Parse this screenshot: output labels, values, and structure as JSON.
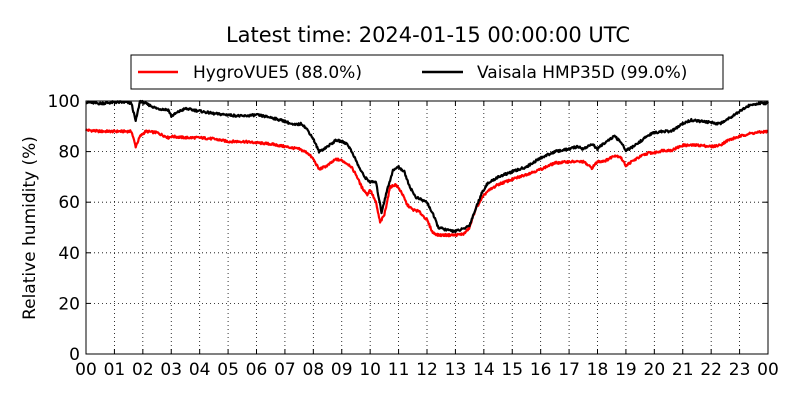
{
  "chart_data": {
    "type": "line",
    "title": "Latest time: 2024-01-15 00:00:00 UTC",
    "xlabel": "",
    "ylabel": "Relative humidity (%)",
    "xlim": [
      0,
      24
    ],
    "ylim": [
      0,
      100
    ],
    "grid": true,
    "legend_position": "top-center",
    "x_ticks": [
      0,
      1,
      2,
      3,
      4,
      5,
      6,
      7,
      8,
      9,
      10,
      11,
      12,
      13,
      14,
      15,
      16,
      17,
      18,
      19,
      20,
      21,
      22,
      23,
      24
    ],
    "x_tick_labels": [
      "00",
      "01",
      "02",
      "03",
      "04",
      "05",
      "06",
      "07",
      "08",
      "09",
      "10",
      "11",
      "12",
      "13",
      "14",
      "15",
      "16",
      "17",
      "18",
      "19",
      "20",
      "21",
      "22",
      "23",
      "00"
    ],
    "y_ticks": [
      0,
      20,
      40,
      60,
      80,
      100
    ],
    "y_tick_labels": [
      "0",
      "20",
      "40",
      "60",
      "80",
      "100"
    ],
    "series": [
      {
        "name": "HygroVUE5 (88.0%)",
        "color": "#ff0000",
        "x": [
          0.0,
          0.5,
          1.0,
          1.4,
          1.6,
          1.75,
          1.9,
          2.1,
          2.5,
          2.9,
          3.0,
          3.5,
          4.0,
          4.5,
          5.0,
          5.5,
          6.0,
          6.5,
          7.0,
          7.5,
          7.8,
          8.0,
          8.2,
          8.5,
          8.8,
          9.0,
          9.3,
          9.5,
          9.7,
          9.9,
          10.0,
          10.2,
          10.35,
          10.5,
          10.7,
          10.9,
          11.1,
          11.3,
          11.5,
          11.7,
          12.0,
          12.2,
          12.4,
          12.7,
          13.0,
          13.3,
          13.5,
          13.7,
          13.9,
          14.1,
          14.5,
          15.0,
          15.5,
          16.0,
          16.5,
          17.0,
          17.5,
          17.8,
          18.0,
          18.3,
          18.6,
          18.8,
          19.0,
          19.2,
          19.5,
          19.8,
          20.0,
          20.3,
          20.6,
          21.0,
          21.3,
          21.6,
          22.0,
          22.3,
          22.6,
          23.0,
          23.3,
          23.6,
          24.0
        ],
        "values": [
          88.5,
          88.0,
          88.0,
          88.0,
          88.0,
          82.0,
          86.0,
          88.0,
          87.5,
          85.5,
          86.0,
          85.5,
          85.5,
          85.0,
          84.0,
          84.0,
          83.5,
          83.0,
          82.0,
          81.0,
          79.5,
          77.0,
          73.0,
          74.5,
          77.0,
          76.5,
          74.5,
          71.0,
          66.0,
          63.0,
          65.0,
          60.0,
          52.0,
          55.0,
          66.0,
          67.0,
          64.0,
          59.0,
          57.0,
          56.5,
          53.0,
          48.0,
          47.0,
          47.0,
          47.0,
          47.5,
          50.0,
          57.0,
          61.0,
          64.0,
          67.0,
          69.0,
          71.0,
          73.0,
          75.5,
          76.0,
          76.0,
          73.5,
          76.0,
          76.5,
          78.5,
          78.0,
          74.5,
          76.0,
          78.0,
          79.5,
          79.5,
          80.5,
          80.5,
          82.5,
          82.5,
          82.5,
          82.0,
          82.5,
          84.5,
          86.0,
          87.0,
          87.5,
          88.0
        ]
      },
      {
        "name": "Vaisala HMP35D (99.0%)",
        "color": "#000000",
        "x": [
          0.0,
          0.5,
          1.0,
          1.4,
          1.6,
          1.75,
          1.9,
          2.1,
          2.5,
          2.9,
          3.0,
          3.3,
          3.5,
          4.0,
          4.5,
          5.0,
          5.5,
          6.0,
          6.5,
          7.0,
          7.3,
          7.6,
          7.8,
          8.0,
          8.2,
          8.5,
          8.8,
          9.0,
          9.2,
          9.4,
          9.6,
          9.8,
          10.0,
          10.2,
          10.4,
          10.6,
          10.8,
          11.0,
          11.2,
          11.4,
          11.6,
          11.8,
          12.0,
          12.2,
          12.4,
          12.7,
          13.0,
          13.3,
          13.5,
          13.7,
          13.9,
          14.1,
          14.5,
          15.0,
          15.5,
          16.0,
          16.5,
          17.0,
          17.3,
          17.5,
          17.8,
          18.0,
          18.3,
          18.6,
          18.8,
          19.0,
          19.2,
          19.5,
          19.8,
          20.0,
          20.3,
          20.6,
          21.0,
          21.3,
          21.6,
          22.0,
          22.3,
          22.6,
          23.0,
          23.3,
          23.6,
          24.0
        ],
        "values": [
          99.5,
          99.0,
          99.5,
          99.5,
          99.0,
          92.0,
          100.0,
          99.0,
          97.0,
          96.5,
          94.0,
          96.0,
          97.0,
          96.0,
          95.0,
          94.5,
          94.0,
          94.5,
          93.5,
          92.0,
          90.5,
          91.0,
          88.5,
          85.0,
          80.0,
          82.0,
          84.5,
          84.0,
          83.0,
          79.0,
          74.0,
          70.0,
          68.0,
          68.0,
          56.0,
          65.0,
          72.5,
          74.0,
          72.0,
          66.0,
          62.0,
          61.0,
          60.0,
          55.5,
          50.0,
          49.0,
          48.5,
          49.5,
          51.0,
          57.0,
          63.0,
          67.0,
          70.0,
          72.0,
          74.0,
          77.5,
          80.0,
          81.0,
          82.0,
          81.0,
          83.0,
          81.0,
          84.0,
          86.0,
          84.0,
          80.5,
          81.5,
          84.0,
          86.5,
          87.5,
          88.0,
          88.0,
          91.0,
          92.5,
          92.0,
          91.5,
          91.0,
          93.0,
          96.0,
          98.0,
          99.0,
          99.0
        ]
      }
    ]
  }
}
